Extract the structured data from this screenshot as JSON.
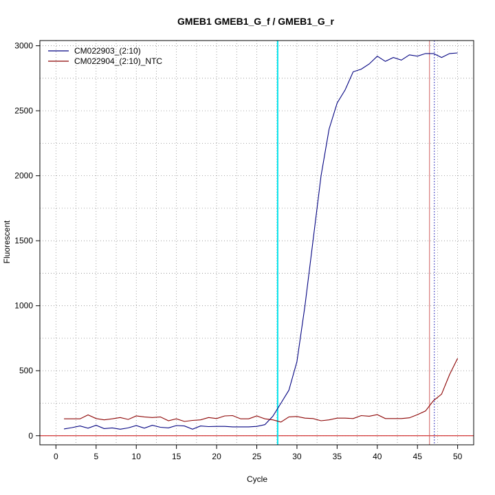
{
  "chart_data": {
    "type": "line",
    "title": "GMEB1  GMEB1_G_f / GMEB1_G_r",
    "xlabel": "Cycle",
    "ylabel": "Fluorescent",
    "xlim": [
      -2,
      52
    ],
    "ylim": [
      -70,
      3040
    ],
    "x_ticks": [
      0,
      5,
      10,
      15,
      20,
      25,
      30,
      35,
      40,
      45,
      50
    ],
    "y_ticks": [
      0,
      500,
      1000,
      1500,
      2000,
      2500,
      3000
    ],
    "legend_position": "top-left",
    "grid": true,
    "threshold_y": 0,
    "threshold_color": "#d03030",
    "vertical_markers": [
      {
        "x": 27.6,
        "color": "#00e5ee"
      },
      {
        "x": 46.5,
        "color": "#d06060"
      },
      {
        "x": 47.1,
        "color": "#4040c0"
      }
    ],
    "series": [
      {
        "name": "CM022903_(2:10)",
        "color": "#000080",
        "x": [
          1,
          2,
          3,
          4,
          5,
          6,
          7,
          8,
          9,
          10,
          11,
          12,
          13,
          14,
          15,
          16,
          17,
          18,
          19,
          20,
          21,
          22,
          23,
          24,
          25,
          26,
          27,
          28,
          29,
          30,
          31,
          32,
          33,
          34,
          35,
          36,
          37,
          38,
          39,
          40,
          41,
          42,
          43,
          44,
          45,
          46,
          47,
          48,
          49,
          50
        ],
        "y": [
          52,
          62,
          75,
          58,
          80,
          55,
          60,
          50,
          60,
          78,
          58,
          80,
          65,
          60,
          78,
          75,
          50,
          75,
          70,
          72,
          72,
          68,
          68,
          68,
          72,
          85,
          150,
          250,
          350,
          570,
          1000,
          1500,
          2000,
          2360,
          2560,
          2660,
          2800,
          2820,
          2860,
          2920,
          2880,
          2910,
          2890,
          2930,
          2920,
          2940,
          2940,
          2910,
          2940,
          2945
        ]
      },
      {
        "name": "CM022904_(2:10)_NTC",
        "color": "#8b0000",
        "x": [
          1,
          2,
          3,
          4,
          5,
          6,
          7,
          8,
          9,
          10,
          11,
          12,
          13,
          14,
          15,
          16,
          17,
          18,
          19,
          20,
          21,
          22,
          23,
          24,
          25,
          26,
          27,
          28,
          29,
          30,
          31,
          32,
          33,
          34,
          35,
          36,
          37,
          38,
          39,
          40,
          41,
          42,
          43,
          44,
          45,
          46,
          47,
          48,
          49,
          50
        ],
        "y": [
          130,
          130,
          130,
          160,
          132,
          122,
          130,
          140,
          125,
          152,
          145,
          140,
          145,
          115,
          130,
          110,
          118,
          122,
          140,
          132,
          152,
          155,
          130,
          130,
          152,
          130,
          122,
          105,
          145,
          148,
          135,
          132,
          115,
          122,
          135,
          135,
          132,
          155,
          150,
          162,
          132,
          132,
          132,
          138,
          162,
          190,
          270,
          320,
          470,
          595
        ]
      }
    ]
  }
}
